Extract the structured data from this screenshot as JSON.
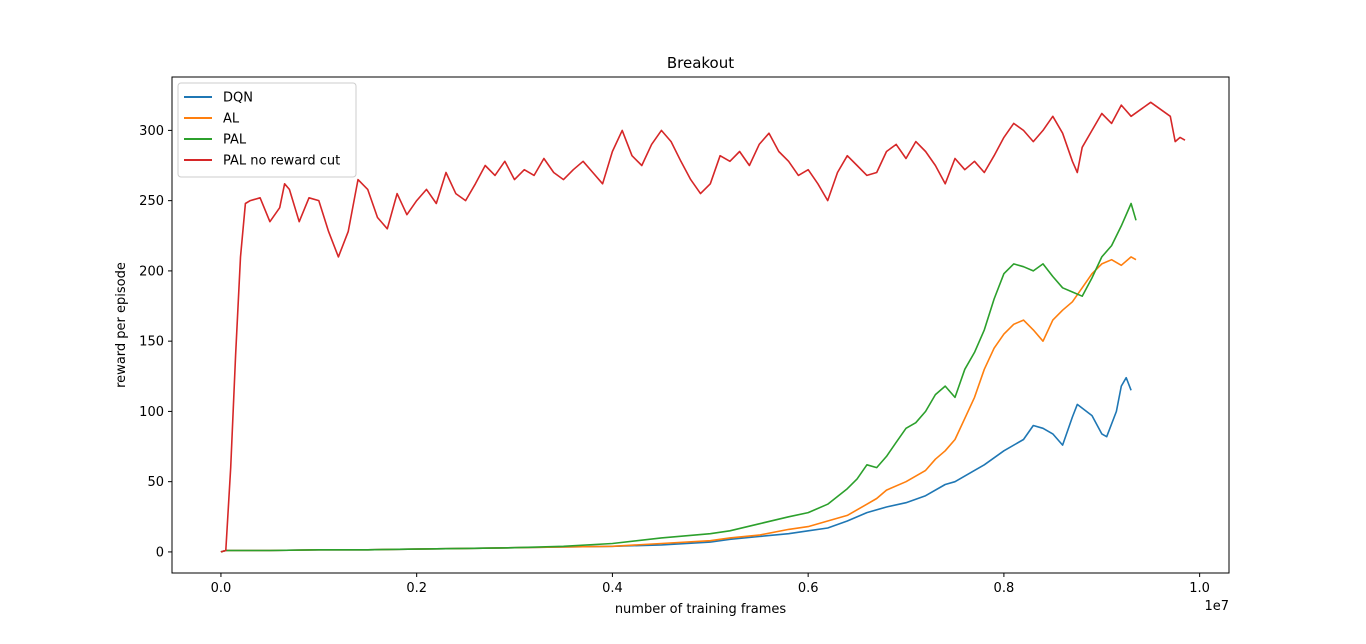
{
  "chart_data": {
    "type": "line",
    "title": "Breakout",
    "xlabel": "number of training frames",
    "ylabel": "reward per episode",
    "x_offset_label": "1e7",
    "xlim": [
      -0.05,
      1.03
    ],
    "ylim": [
      -15,
      338
    ],
    "xticks": [
      0.0,
      0.2,
      0.4,
      0.6,
      0.8,
      1.0
    ],
    "xtick_labels": [
      "0.0",
      "0.2",
      "0.4",
      "0.6",
      "0.8",
      "1.0"
    ],
    "yticks": [
      0,
      50,
      100,
      150,
      200,
      250,
      300
    ],
    "ytick_labels": [
      "0",
      "50",
      "100",
      "150",
      "200",
      "250",
      "300"
    ],
    "legend_position": "top-left",
    "grid": false,
    "series": [
      {
        "name": "DQN",
        "color": "#1f77b4",
        "points": [
          [
            0.0,
            0
          ],
          [
            0.005,
            1
          ],
          [
            0.05,
            1
          ],
          [
            0.1,
            1.5
          ],
          [
            0.15,
            1.5
          ],
          [
            0.2,
            2
          ],
          [
            0.25,
            2.5
          ],
          [
            0.3,
            3
          ],
          [
            0.35,
            3.5
          ],
          [
            0.4,
            4
          ],
          [
            0.45,
            5
          ],
          [
            0.5,
            7
          ],
          [
            0.52,
            9
          ],
          [
            0.55,
            11
          ],
          [
            0.58,
            13
          ],
          [
            0.6,
            15
          ],
          [
            0.62,
            17
          ],
          [
            0.64,
            22
          ],
          [
            0.66,
            28
          ],
          [
            0.68,
            32
          ],
          [
            0.7,
            35
          ],
          [
            0.72,
            40
          ],
          [
            0.74,
            48
          ],
          [
            0.75,
            50
          ],
          [
            0.77,
            58
          ],
          [
            0.78,
            62
          ],
          [
            0.8,
            72
          ],
          [
            0.82,
            80
          ],
          [
            0.83,
            90
          ],
          [
            0.84,
            88
          ],
          [
            0.85,
            84
          ],
          [
            0.86,
            76
          ],
          [
            0.87,
            96
          ],
          [
            0.875,
            105
          ],
          [
            0.89,
            97
          ],
          [
            0.9,
            84
          ],
          [
            0.905,
            82
          ],
          [
            0.915,
            100
          ],
          [
            0.92,
            118
          ],
          [
            0.925,
            124
          ],
          [
            0.93,
            115
          ]
        ]
      },
      {
        "name": "AL",
        "color": "#ff7f0e",
        "points": [
          [
            0.0,
            0
          ],
          [
            0.005,
            1
          ],
          [
            0.05,
            1
          ],
          [
            0.1,
            1.5
          ],
          [
            0.15,
            1.5
          ],
          [
            0.2,
            2
          ],
          [
            0.25,
            2.5
          ],
          [
            0.3,
            3
          ],
          [
            0.35,
            3.5
          ],
          [
            0.4,
            4
          ],
          [
            0.45,
            6
          ],
          [
            0.5,
            8
          ],
          [
            0.52,
            10
          ],
          [
            0.55,
            12
          ],
          [
            0.58,
            16
          ],
          [
            0.6,
            18
          ],
          [
            0.62,
            22
          ],
          [
            0.64,
            26
          ],
          [
            0.65,
            30
          ],
          [
            0.66,
            34
          ],
          [
            0.67,
            38
          ],
          [
            0.68,
            44
          ],
          [
            0.7,
            50
          ],
          [
            0.72,
            58
          ],
          [
            0.73,
            66
          ],
          [
            0.74,
            72
          ],
          [
            0.75,
            80
          ],
          [
            0.76,
            95
          ],
          [
            0.77,
            110
          ],
          [
            0.78,
            130
          ],
          [
            0.79,
            145
          ],
          [
            0.8,
            155
          ],
          [
            0.81,
            162
          ],
          [
            0.82,
            165
          ],
          [
            0.83,
            158
          ],
          [
            0.84,
            150
          ],
          [
            0.85,
            165
          ],
          [
            0.86,
            172
          ],
          [
            0.87,
            178
          ],
          [
            0.88,
            188
          ],
          [
            0.89,
            198
          ],
          [
            0.9,
            205
          ],
          [
            0.91,
            208
          ],
          [
            0.92,
            204
          ],
          [
            0.93,
            210
          ],
          [
            0.935,
            208
          ]
        ]
      },
      {
        "name": "PAL",
        "color": "#2ca02c",
        "points": [
          [
            0.0,
            0
          ],
          [
            0.005,
            1
          ],
          [
            0.05,
            1
          ],
          [
            0.1,
            1.5
          ],
          [
            0.15,
            1.5
          ],
          [
            0.2,
            2
          ],
          [
            0.25,
            2.5
          ],
          [
            0.3,
            3
          ],
          [
            0.35,
            4
          ],
          [
            0.4,
            6
          ],
          [
            0.45,
            10
          ],
          [
            0.5,
            13
          ],
          [
            0.52,
            15
          ],
          [
            0.55,
            20
          ],
          [
            0.58,
            25
          ],
          [
            0.6,
            28
          ],
          [
            0.62,
            34
          ],
          [
            0.64,
            45
          ],
          [
            0.65,
            52
          ],
          [
            0.66,
            62
          ],
          [
            0.67,
            60
          ],
          [
            0.68,
            68
          ],
          [
            0.69,
            78
          ],
          [
            0.7,
            88
          ],
          [
            0.71,
            92
          ],
          [
            0.72,
            100
          ],
          [
            0.73,
            112
          ],
          [
            0.74,
            118
          ],
          [
            0.75,
            110
          ],
          [
            0.76,
            130
          ],
          [
            0.77,
            142
          ],
          [
            0.78,
            158
          ],
          [
            0.79,
            180
          ],
          [
            0.8,
            198
          ],
          [
            0.81,
            205
          ],
          [
            0.82,
            203
          ],
          [
            0.83,
            200
          ],
          [
            0.84,
            205
          ],
          [
            0.85,
            196
          ],
          [
            0.86,
            188
          ],
          [
            0.87,
            185
          ],
          [
            0.88,
            182
          ],
          [
            0.89,
            195
          ],
          [
            0.9,
            210
          ],
          [
            0.91,
            218
          ],
          [
            0.92,
            232
          ],
          [
            0.93,
            248
          ],
          [
            0.935,
            236
          ]
        ]
      },
      {
        "name": "PAL no reward cut",
        "color": "#d62728",
        "points": [
          [
            0.0,
            0
          ],
          [
            0.005,
            1
          ],
          [
            0.01,
            60
          ],
          [
            0.015,
            140
          ],
          [
            0.02,
            210
          ],
          [
            0.025,
            248
          ],
          [
            0.03,
            250
          ],
          [
            0.04,
            252
          ],
          [
            0.05,
            235
          ],
          [
            0.06,
            245
          ],
          [
            0.065,
            262
          ],
          [
            0.07,
            258
          ],
          [
            0.08,
            235
          ],
          [
            0.09,
            252
          ],
          [
            0.1,
            250
          ],
          [
            0.11,
            228
          ],
          [
            0.12,
            210
          ],
          [
            0.13,
            228
          ],
          [
            0.14,
            265
          ],
          [
            0.15,
            258
          ],
          [
            0.16,
            238
          ],
          [
            0.17,
            230
          ],
          [
            0.18,
            255
          ],
          [
            0.19,
            240
          ],
          [
            0.2,
            250
          ],
          [
            0.21,
            258
          ],
          [
            0.22,
            248
          ],
          [
            0.23,
            270
          ],
          [
            0.24,
            255
          ],
          [
            0.25,
            250
          ],
          [
            0.26,
            262
          ],
          [
            0.27,
            275
          ],
          [
            0.28,
            268
          ],
          [
            0.29,
            278
          ],
          [
            0.3,
            265
          ],
          [
            0.31,
            272
          ],
          [
            0.32,
            268
          ],
          [
            0.33,
            280
          ],
          [
            0.34,
            270
          ],
          [
            0.35,
            265
          ],
          [
            0.36,
            272
          ],
          [
            0.37,
            278
          ],
          [
            0.38,
            270
          ],
          [
            0.39,
            262
          ],
          [
            0.4,
            285
          ],
          [
            0.41,
            300
          ],
          [
            0.42,
            282
          ],
          [
            0.43,
            275
          ],
          [
            0.44,
            290
          ],
          [
            0.45,
            300
          ],
          [
            0.46,
            292
          ],
          [
            0.47,
            278
          ],
          [
            0.48,
            265
          ],
          [
            0.49,
            255
          ],
          [
            0.5,
            262
          ],
          [
            0.51,
            282
          ],
          [
            0.52,
            278
          ],
          [
            0.53,
            285
          ],
          [
            0.54,
            275
          ],
          [
            0.55,
            290
          ],
          [
            0.56,
            298
          ],
          [
            0.57,
            285
          ],
          [
            0.58,
            278
          ],
          [
            0.59,
            268
          ],
          [
            0.6,
            272
          ],
          [
            0.61,
            262
          ],
          [
            0.62,
            250
          ],
          [
            0.63,
            270
          ],
          [
            0.64,
            282
          ],
          [
            0.65,
            275
          ],
          [
            0.66,
            268
          ],
          [
            0.67,
            270
          ],
          [
            0.68,
            285
          ],
          [
            0.69,
            290
          ],
          [
            0.7,
            280
          ],
          [
            0.71,
            292
          ],
          [
            0.72,
            285
          ],
          [
            0.73,
            275
          ],
          [
            0.74,
            262
          ],
          [
            0.75,
            280
          ],
          [
            0.76,
            272
          ],
          [
            0.77,
            278
          ],
          [
            0.78,
            270
          ],
          [
            0.79,
            282
          ],
          [
            0.8,
            295
          ],
          [
            0.81,
            305
          ],
          [
            0.82,
            300
          ],
          [
            0.83,
            292
          ],
          [
            0.84,
            300
          ],
          [
            0.85,
            310
          ],
          [
            0.86,
            298
          ],
          [
            0.87,
            278
          ],
          [
            0.875,
            270
          ],
          [
            0.88,
            288
          ],
          [
            0.89,
            300
          ],
          [
            0.9,
            312
          ],
          [
            0.91,
            305
          ],
          [
            0.92,
            318
          ],
          [
            0.93,
            310
          ],
          [
            0.94,
            315
          ],
          [
            0.95,
            320
          ],
          [
            0.96,
            315
          ],
          [
            0.97,
            310
          ],
          [
            0.975,
            292
          ],
          [
            0.98,
            295
          ],
          [
            0.985,
            293
          ]
        ]
      }
    ]
  }
}
